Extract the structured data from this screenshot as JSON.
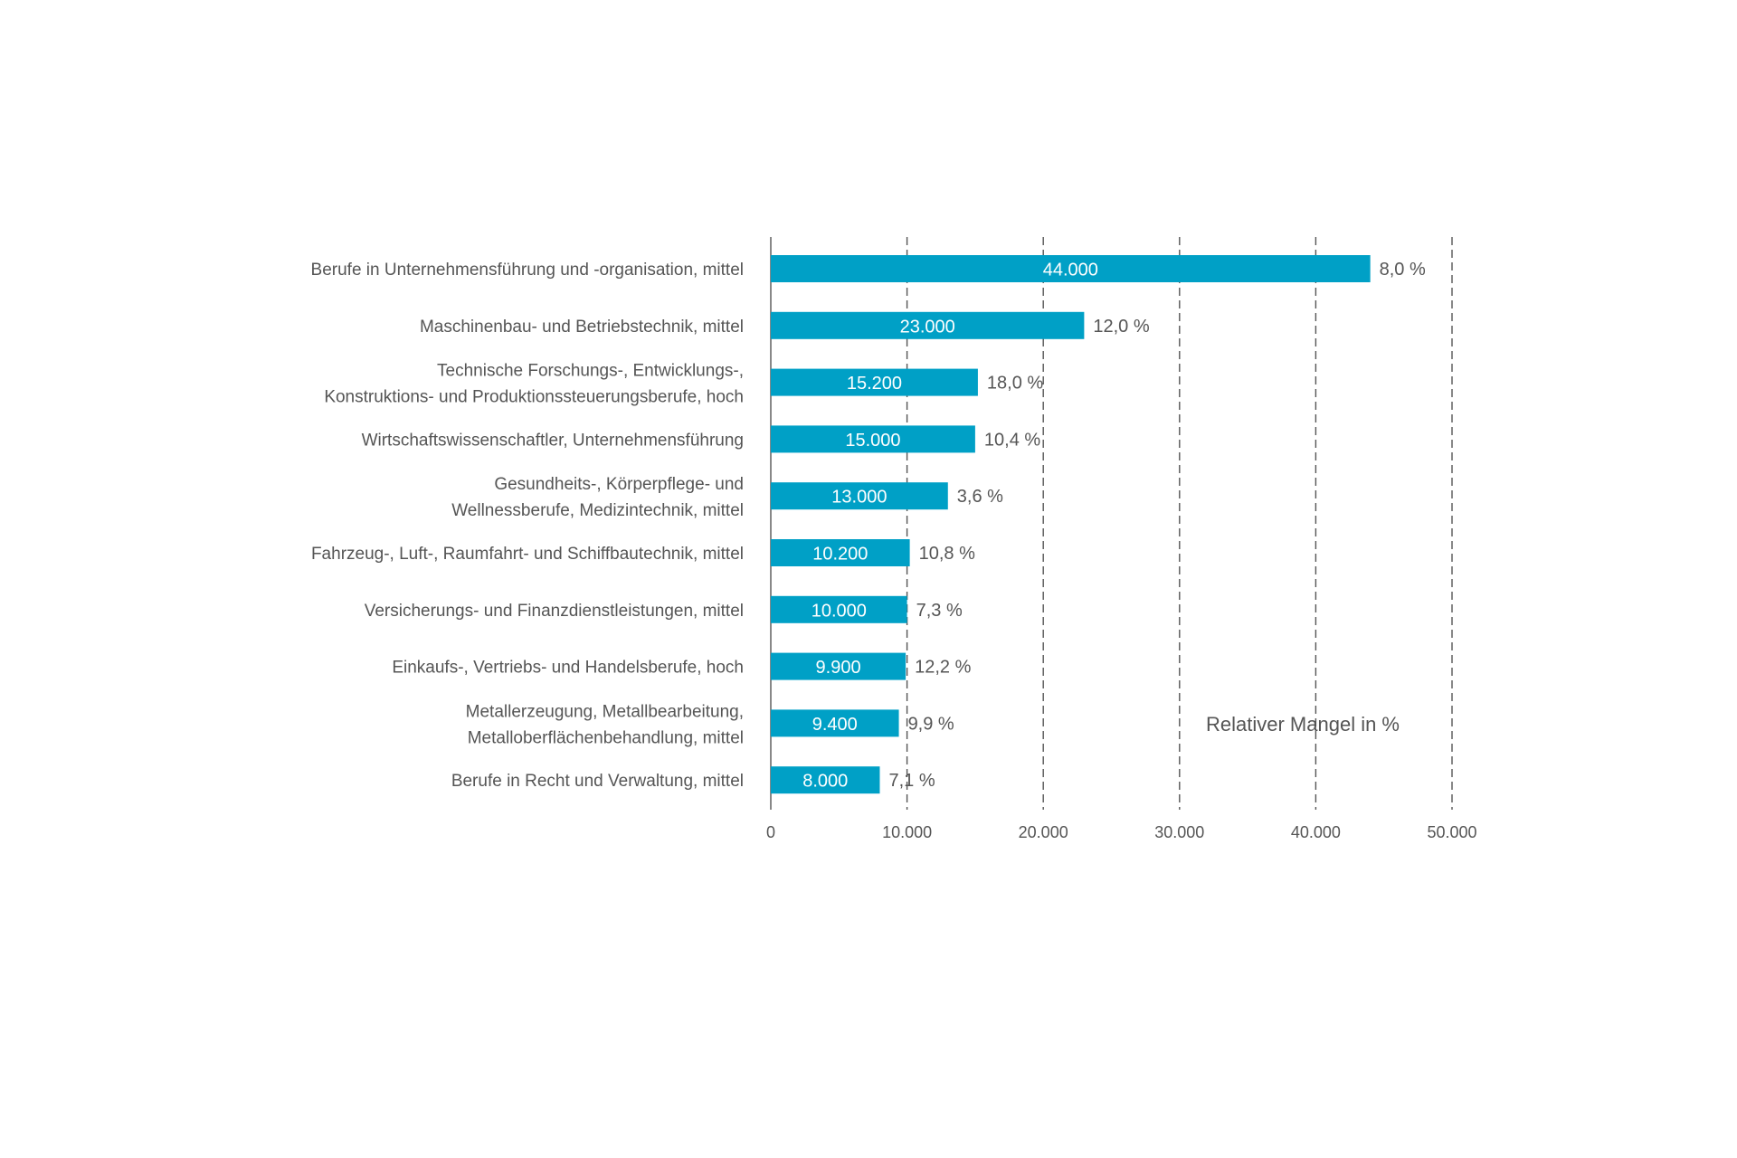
{
  "chart_data": {
    "type": "bar",
    "orientation": "horizontal",
    "categories": [
      [
        "Berufe in Unternehmensführung und -organisation, mittel"
      ],
      [
        "Maschinenbau- und Betriebstechnik, mittel"
      ],
      [
        "Technische Forschungs-, Entwicklungs-,",
        "Konstruktions- und Produktionssteuerungsberufe, hoch"
      ],
      [
        "Wirtschaftswissenschaftler, Unternehmensführung"
      ],
      [
        "Gesundheits-, Körperpflege- und",
        "Wellnessberufe, Medizintechnik, mittel"
      ],
      [
        "Fahrzeug-, Luft-, Raumfahrt- und Schiffbautechnik, mittel"
      ],
      [
        "Versicherungs- und Finanzdienstleistungen, mittel"
      ],
      [
        "Einkaufs-, Vertriebs- und Handelsberufe, hoch"
      ],
      [
        "Metallerzeugung, Metallbearbeitung,",
        "Metalloberflächenbehandlung, mittel"
      ],
      [
        "Berufe in Recht und Verwaltung, mittel"
      ]
    ],
    "values": [
      44000,
      23000,
      15200,
      15000,
      13000,
      10200,
      10000,
      9900,
      9400,
      8000
    ],
    "value_labels": [
      "44.000",
      "23.000",
      "15.200",
      "15.000",
      "13.000",
      "10.200",
      "10.000",
      "9.900",
      "9.400",
      "8.000"
    ],
    "relative_shortage_labels": [
      "8,0 %",
      "12,0 %",
      "18,0 %",
      "10,4 %",
      "3,6 %",
      "10,8 %",
      "7,3 %",
      "12,2 %",
      "9,9 %",
      "7,1 %"
    ],
    "xlim": [
      0,
      50000
    ],
    "x_ticks": [
      0,
      10000,
      20000,
      30000,
      40000,
      50000
    ],
    "x_tick_labels": [
      "0",
      "10.000",
      "20.000",
      "30.000",
      "40.000",
      "50.000"
    ],
    "grid": "vertical dashed",
    "legend_text": "Relativer Mangel in %",
    "bar_color": "#00a0c6",
    "text_color": "#555555"
  }
}
